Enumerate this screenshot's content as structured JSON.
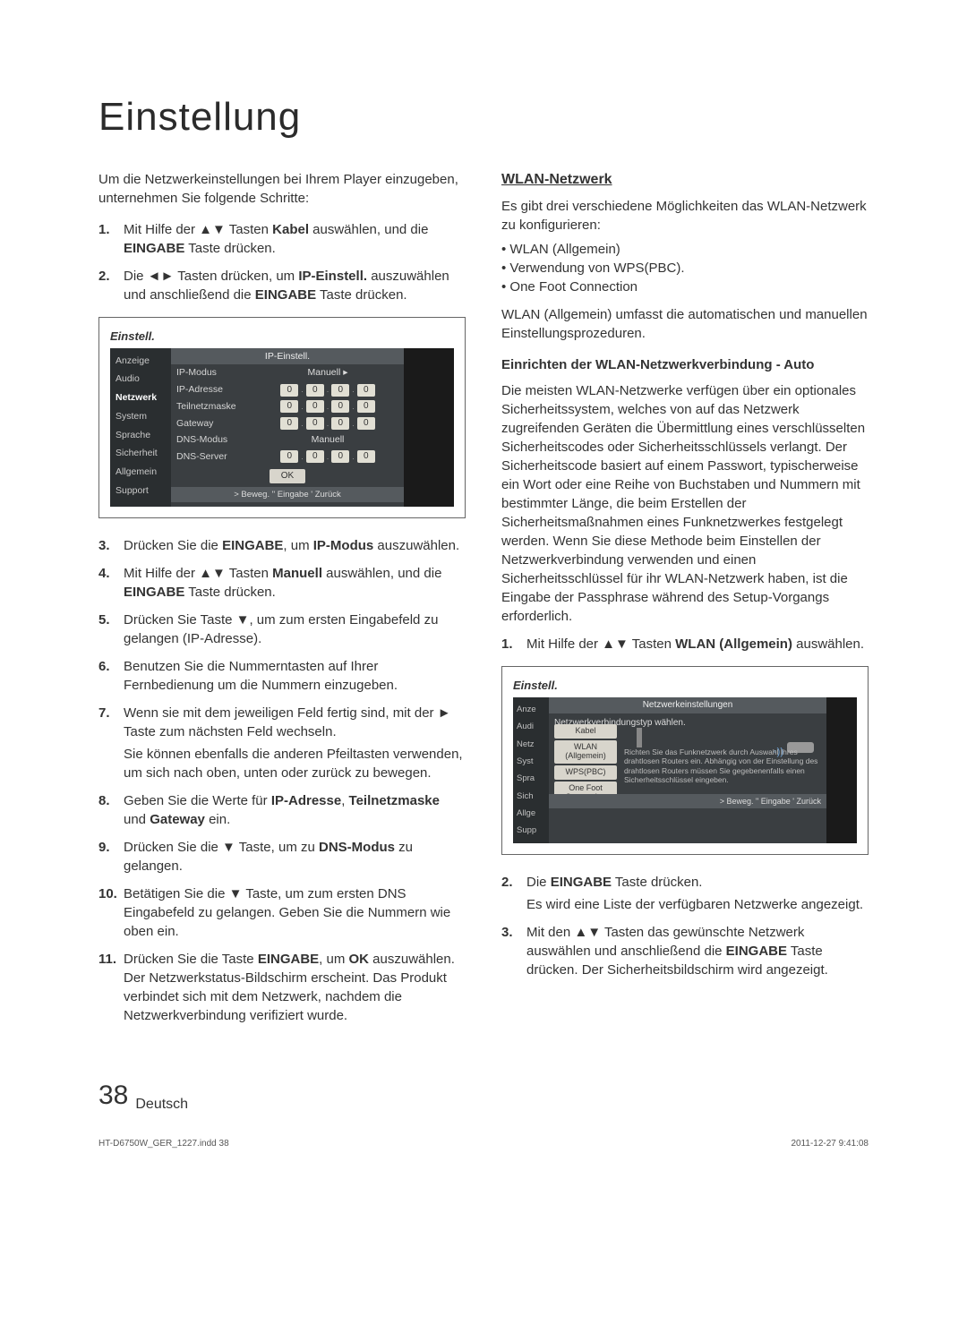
{
  "title": "Einstellung",
  "left": {
    "intro": "Um die Netzwerkeinstellungen bei Ihrem Player einzugeben, unternehmen Sie folgende Schritte:",
    "steps_a": [
      {
        "n": "1.",
        "html": "Mit Hilfe der ▲▼ Tasten <b>Kabel</b> auswählen, und die <b>EINGABE</b> Taste drücken."
      },
      {
        "n": "2.",
        "html": "Die ◄► Tasten drücken, um <b>IP-Einstell.</b> auszuwählen und anschließend die <b>EINGABE</b> Taste drücken."
      }
    ],
    "shot1": {
      "window_title": "Einstell.",
      "panel_title": "IP-Einstell.",
      "sidebar": [
        "Anzeige",
        "Audio",
        "Netzwerk",
        "System",
        "Sprache",
        "Sicherheit",
        "Allgemein",
        "Support"
      ],
      "rows": [
        {
          "label": "IP-Modus",
          "type": "text",
          "value": "Manuell",
          "arrow": true
        },
        {
          "label": "IP-Adresse",
          "type": "ip",
          "value": [
            "0",
            "0",
            "0",
            "0"
          ]
        },
        {
          "label": "Teilnetzmaske",
          "type": "ip",
          "value": [
            "0",
            "0",
            "0",
            "0"
          ]
        },
        {
          "label": "Gateway",
          "type": "ip",
          "value": [
            "0",
            "0",
            "0",
            "0"
          ]
        },
        {
          "label": "DNS-Modus",
          "type": "text",
          "value": "Manuell"
        },
        {
          "label": "DNS-Server",
          "type": "ip",
          "value": [
            "0",
            "0",
            "0",
            "0"
          ]
        }
      ],
      "ok": "OK",
      "bottombar": "> Beweg.   \" Eingabe   ' Zurück"
    },
    "steps_b": [
      {
        "n": "3.",
        "html": "Drücken Sie die <b>EINGABE</b>, um <b>IP-Modus</b> auszuwählen."
      },
      {
        "n": "4.",
        "html": "Mit Hilfe der ▲▼ Tasten <b>Manuell</b> auswählen, und die <b>EINGABE</b> Taste drücken."
      },
      {
        "n": "5.",
        "html": "Drücken Sie Taste ▼, um zum ersten Eingabefeld zu gelangen (IP-Adresse)."
      },
      {
        "n": "6.",
        "html": "Benutzen Sie die Nummerntasten auf Ihrer Fernbedienung um die Nummern einzugeben."
      },
      {
        "n": "7.",
        "html": "Wenn sie mit dem jeweiligen Feld fertig sind, mit der ► Taste zum nächsten Feld wechseln.",
        "sub": "Sie können ebenfalls die anderen Pfeiltasten verwenden, um sich nach oben, unten oder zurück zu bewegen."
      },
      {
        "n": "8.",
        "html": "Geben Sie die Werte für <b>IP-Adresse</b>, <b>Teilnetzmaske</b> und <b>Gateway</b> ein."
      },
      {
        "n": "9.",
        "html": "Drücken Sie die ▼ Taste, um zu <b>DNS-Modus</b> zu gelangen."
      },
      {
        "n": "10.",
        "html": "Betätigen Sie die ▼ Taste, um zum ersten DNS Eingabefeld zu gelangen. Geben Sie die Nummern wie oben ein."
      },
      {
        "n": "11.",
        "html": "Drücken Sie die Taste <b>EINGABE</b>, um <b>OK</b> auszuwählen. Der Netzwerkstatus-Bildschirm erscheint. Das Produkt verbindet sich mit dem Netzwerk, nachdem die Netzwerkverbindung verifiziert wurde."
      }
    ]
  },
  "right": {
    "h2": "WLAN-Netzwerk",
    "intro": "Es gibt drei verschiedene Möglichkeiten das WLAN-Netzwerk zu konfigurieren:",
    "bullets": [
      "WLAN (Allgemein)",
      "Verwendung von WPS(PBC).",
      "One Foot Connection"
    ],
    "after_bullets": "WLAN (Allgemein) umfasst die automatischen und manuellen Einstellungsprozeduren.",
    "h3": "Einrichten der WLAN-Netzwerkverbindung - Auto",
    "para": "Die meisten WLAN-Netzwerke verfügen über ein optionales Sicherheitssystem, welches von auf das Netzwerk zugreifenden Geräten die Übermittlung eines verschlüsselten Sicherheitscodes oder Sicherheitsschlüssels verlangt. Der Sicherheitscode basiert auf einem Passwort, typischerweise ein Wort oder eine Reihe von Buchstaben und Nummern mit bestimmter Länge, die beim Erstellen der Sicherheitsmaßnahmen eines Funknetzwerkes festgelegt werden. Wenn Sie diese Methode beim Einstellen der Netzwerkverbindung verwenden und einen Sicherheitsschlüssel für ihr WLAN-Netzwerk haben, ist die Eingabe der Passphrase während des Setup-Vorgangs erforderlich.",
    "steps": [
      {
        "n": "1.",
        "html": "Mit Hilfe der ▲▼ Tasten <b>WLAN (Allgemein)</b> auswählen."
      }
    ],
    "shot2": {
      "window_title": "Einstell.",
      "panel_title": "Netzwerkeinstellungen",
      "subtitle": "Netzwerkverbindungstyp wählen.",
      "sidebar": [
        "Anze",
        "Audi",
        "Netz",
        "Syst",
        "Spra",
        "Sich",
        "Allge",
        "Supp"
      ],
      "options": [
        "Kabel",
        "WLAN (Allgemein)",
        "WPS(PBC)",
        "One Foot Connection"
      ],
      "desc": "Richten Sie das Funknetzwerk durch Auswahl Ihres drahtlosen Routers ein. Abhängig von der Einstellung des drahtlosen Routers müssen Sie gegebenenfalls einen Sicherheitsschlüssel eingeben.",
      "bottombar": "> Beweg.   \" Eingabe   ' Zurück"
    },
    "steps_after": [
      {
        "n": "2.",
        "html": "Die <b>EINGABE</b> Taste drücken.",
        "sub": "Es wird eine Liste der verfügbaren Netzwerke angezeigt."
      },
      {
        "n": "3.",
        "html": "Mit den ▲▼ Tasten das gewünschte Netzwerk auswählen und anschließend die <b>EINGABE</b> Taste drücken. Der Sicherheitsbildschirm wird angezeigt."
      }
    ]
  },
  "footer": {
    "page": "38",
    "lang": "Deutsch"
  },
  "printline": {
    "left": "HT-D6750W_GER_1227.indd   38",
    "right": "2011-12-27   9:41:08"
  },
  "colors": {
    "text": "#333333",
    "shot_bg": "#3a3e41",
    "shot_sidebar": "#2a2e30",
    "shot_panel": "#555a5e",
    "ipbox": "#e1dfd4"
  }
}
